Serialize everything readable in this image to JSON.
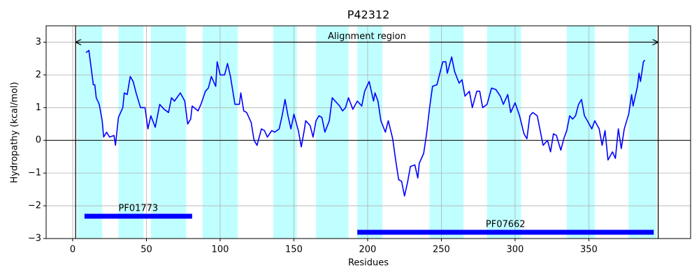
{
  "chart_data": {
    "type": "line",
    "title": "P42312",
    "xlabel": "Residues",
    "ylabel": "Hydropathy (kcal/mol)",
    "xlim": [
      -18,
      419
    ],
    "ylim": [
      -3,
      3.5
    ],
    "xticks": [
      0,
      50,
      100,
      150,
      200,
      250,
      300,
      350
    ],
    "yticks": [
      {
        "value": -3,
        "label": "−3"
      },
      {
        "value": -2,
        "label": "−2"
      },
      {
        "value": -1,
        "label": "−1"
      },
      0,
      1,
      2,
      3
    ],
    "grid": true,
    "hline": 0,
    "color": "#0000ff",
    "span_color": "#c0ffff",
    "domain_color": "#0000ff",
    "spans": [
      [
        3,
        20
      ],
      [
        31,
        48
      ],
      [
        53,
        77
      ],
      [
        88,
        112
      ],
      [
        136,
        152
      ],
      [
        165,
        187
      ],
      [
        193,
        210
      ],
      [
        242,
        265
      ],
      [
        281,
        304
      ],
      [
        335,
        354
      ],
      [
        377,
        396
      ]
    ],
    "alignment": {
      "label": "Alignment region",
      "start": 2,
      "end": 397
    },
    "domains": [
      {
        "name": "PF01773",
        "start": 8,
        "end": 81
      },
      {
        "name": "PF07662",
        "start": 193,
        "end": 394
      }
    ],
    "x": [
      9,
      11,
      14,
      15,
      16,
      18,
      20,
      21,
      23,
      25,
      28,
      29,
      31,
      34,
      35,
      37,
      39,
      41,
      43,
      46,
      49,
      51,
      53,
      56,
      59,
      62,
      65,
      67,
      69,
      73,
      76,
      78,
      80,
      81,
      85,
      87,
      90,
      92,
      94,
      97,
      98,
      100,
      103,
      105,
      107,
      110,
      113,
      114,
      116,
      118,
      121,
      123,
      125,
      128,
      130,
      132,
      135,
      137,
      140,
      142,
      144,
      146,
      148,
      150,
      153,
      155,
      157,
      158,
      161,
      163,
      165,
      167,
      169,
      171,
      174,
      176,
      178,
      181,
      183,
      185,
      187,
      190,
      193,
      196,
      198,
      201,
      204,
      205,
      207,
      209,
      212,
      214,
      217,
      219,
      221,
      223,
      225,
      227,
      229,
      232,
      234,
      235,
      238,
      240,
      242,
      244,
      247,
      249,
      251,
      253,
      254,
      257,
      259,
      262,
      264,
      266,
      269,
      271,
      274,
      276,
      278,
      281,
      284,
      287,
      290,
      292,
      295,
      297,
      300,
      303,
      306,
      308,
      310,
      312,
      315,
      317,
      319,
      322,
      324,
      326,
      328,
      331,
      333,
      335,
      337,
      339,
      341,
      343,
      345,
      347,
      349,
      352,
      354,
      357,
      359,
      361,
      363,
      366,
      368,
      370,
      372,
      374,
      377,
      379,
      380,
      383,
      384,
      385,
      387,
      388
    ],
    "values": [
      2.68,
      2.75,
      1.7,
      1.7,
      1.3,
      1.1,
      0.6,
      0.1,
      0.25,
      0.1,
      0.15,
      -0.15,
      0.7,
      1.0,
      1.45,
      1.4,
      1.95,
      1.8,
      1.45,
      1.0,
      1.0,
      0.35,
      0.75,
      0.4,
      1.1,
      0.95,
      0.85,
      1.3,
      1.2,
      1.45,
      1.2,
      0.5,
      0.65,
      1.05,
      0.9,
      1.1,
      1.5,
      1.6,
      1.95,
      1.65,
      2.4,
      2.0,
      2.0,
      2.35,
      1.95,
      1.1,
      1.1,
      1.45,
      0.9,
      0.85,
      0.55,
      0.0,
      -0.15,
      0.35,
      0.3,
      0.1,
      0.3,
      0.25,
      0.35,
      0.75,
      1.25,
      0.75,
      0.35,
      0.8,
      0.3,
      -0.2,
      0.3,
      0.6,
      0.45,
      0.1,
      0.6,
      0.75,
      0.7,
      0.25,
      0.6,
      1.3,
      1.2,
      1.05,
      0.9,
      1.0,
      1.3,
      0.95,
      1.2,
      1.05,
      1.5,
      1.8,
      1.2,
      1.45,
      1.2,
      0.6,
      0.25,
      0.6,
      0.05,
      -0.6,
      -1.2,
      -1.25,
      -1.7,
      -1.3,
      -0.8,
      -0.75,
      -1.15,
      -0.7,
      -0.4,
      0.2,
      1.0,
      1.65,
      1.7,
      2.05,
      2.4,
      2.4,
      2.05,
      2.55,
      2.1,
      1.75,
      1.85,
      1.35,
      1.5,
      1.0,
      1.5,
      1.5,
      1.0,
      1.1,
      1.6,
      1.55,
      1.35,
      1.1,
      1.4,
      0.85,
      1.15,
      0.75,
      0.2,
      0.05,
      0.75,
      0.85,
      0.75,
      0.3,
      -0.15,
      0.0,
      -0.35,
      0.2,
      0.15,
      -0.3,
      0.05,
      0.3,
      0.75,
      0.65,
      0.75,
      1.1,
      1.25,
      0.75,
      0.6,
      0.35,
      0.6,
      0.35,
      -0.15,
      0.3,
      -0.6,
      -0.35,
      -0.55,
      0.35,
      -0.25,
      0.35,
      0.8,
      1.4,
      1.05,
      1.65,
      2.05,
      1.8,
      2.4,
      2.45
    ]
  }
}
